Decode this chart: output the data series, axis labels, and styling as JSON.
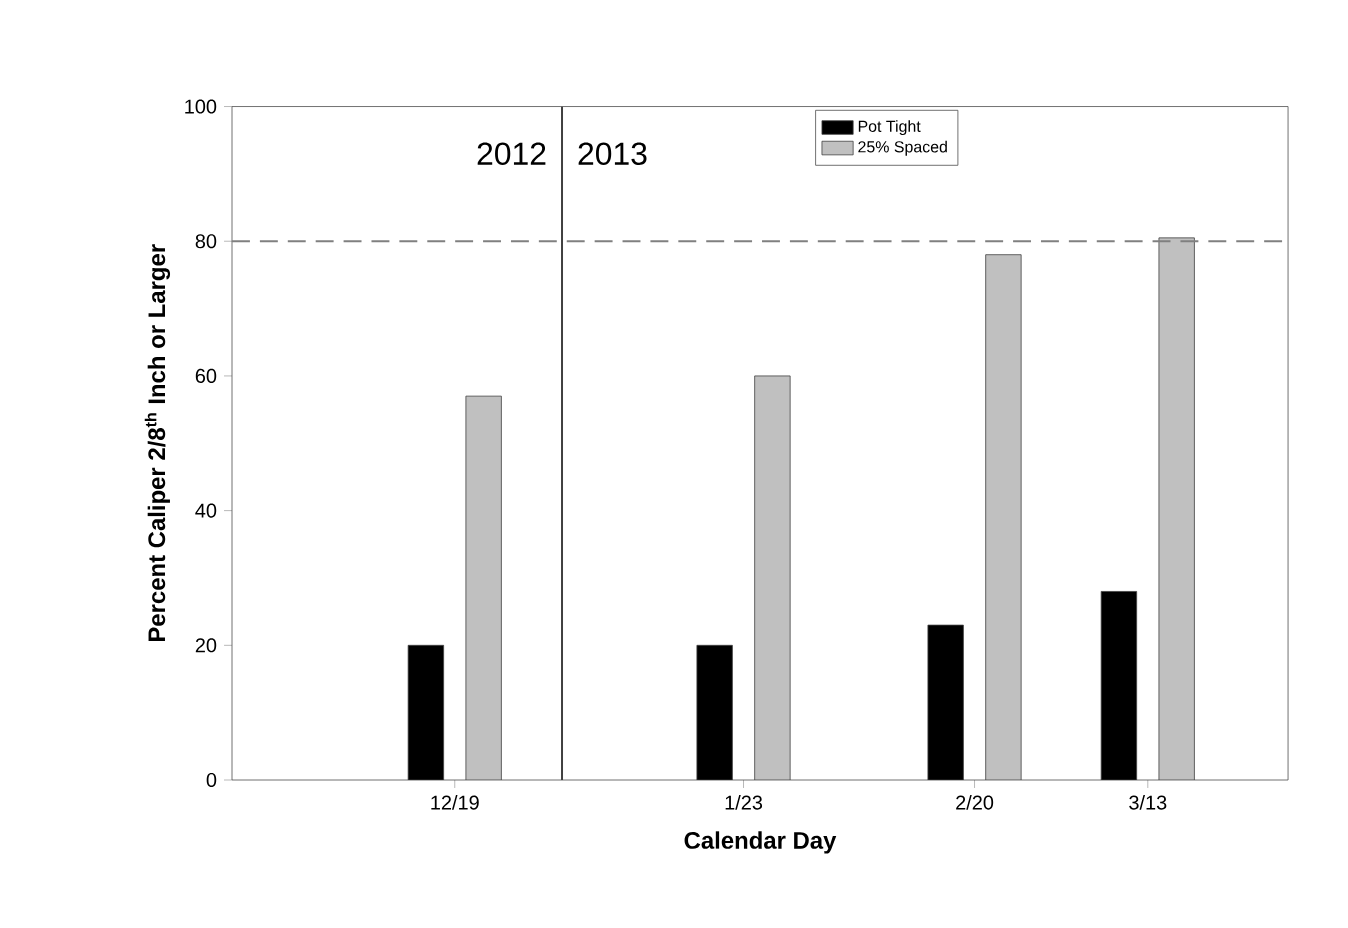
{
  "chart_data": {
    "type": "bar",
    "x": [
      "2012-12-19",
      "2013-01-23",
      "2013-02-20",
      "2013-03-13"
    ],
    "series": [
      {
        "name": "Pot Tight",
        "color": "#000000",
        "values": [
          20,
          20,
          23,
          28
        ]
      },
      {
        "name": "25% Spaced",
        "color": "#c0c0c0",
        "values": [
          57,
          60,
          78,
          80.5
        ]
      }
    ],
    "xlabel": "Calendar Day",
    "ylabel": "Percent Caliper 2/8$^{th}$ Inch or Larger",
    "xlim": [
      "2012-11-22",
      "2013-03-30"
    ],
    "xticks": [
      {
        "value": "2012-12-19",
        "label": "12/19"
      },
      {
        "value": "2013-01-23",
        "label": "1/23"
      },
      {
        "value": "2013-02-20",
        "label": "2/20"
      },
      {
        "value": "2013-03-13",
        "label": "3/13"
      }
    ],
    "ylim": [
      0,
      100
    ],
    "yticks": [
      0,
      20,
      40,
      60,
      80,
      100
    ],
    "ref_lines": [
      {
        "axis": "y",
        "value": 80,
        "color": "#808080",
        "line_style": "dashed"
      },
      {
        "axis": "x",
        "value": "2013-01-01",
        "color": "#404040",
        "line_style": "solid"
      }
    ],
    "annotations": [
      "2012",
      "2013"
    ],
    "legend": "top",
    "grid": false
  }
}
